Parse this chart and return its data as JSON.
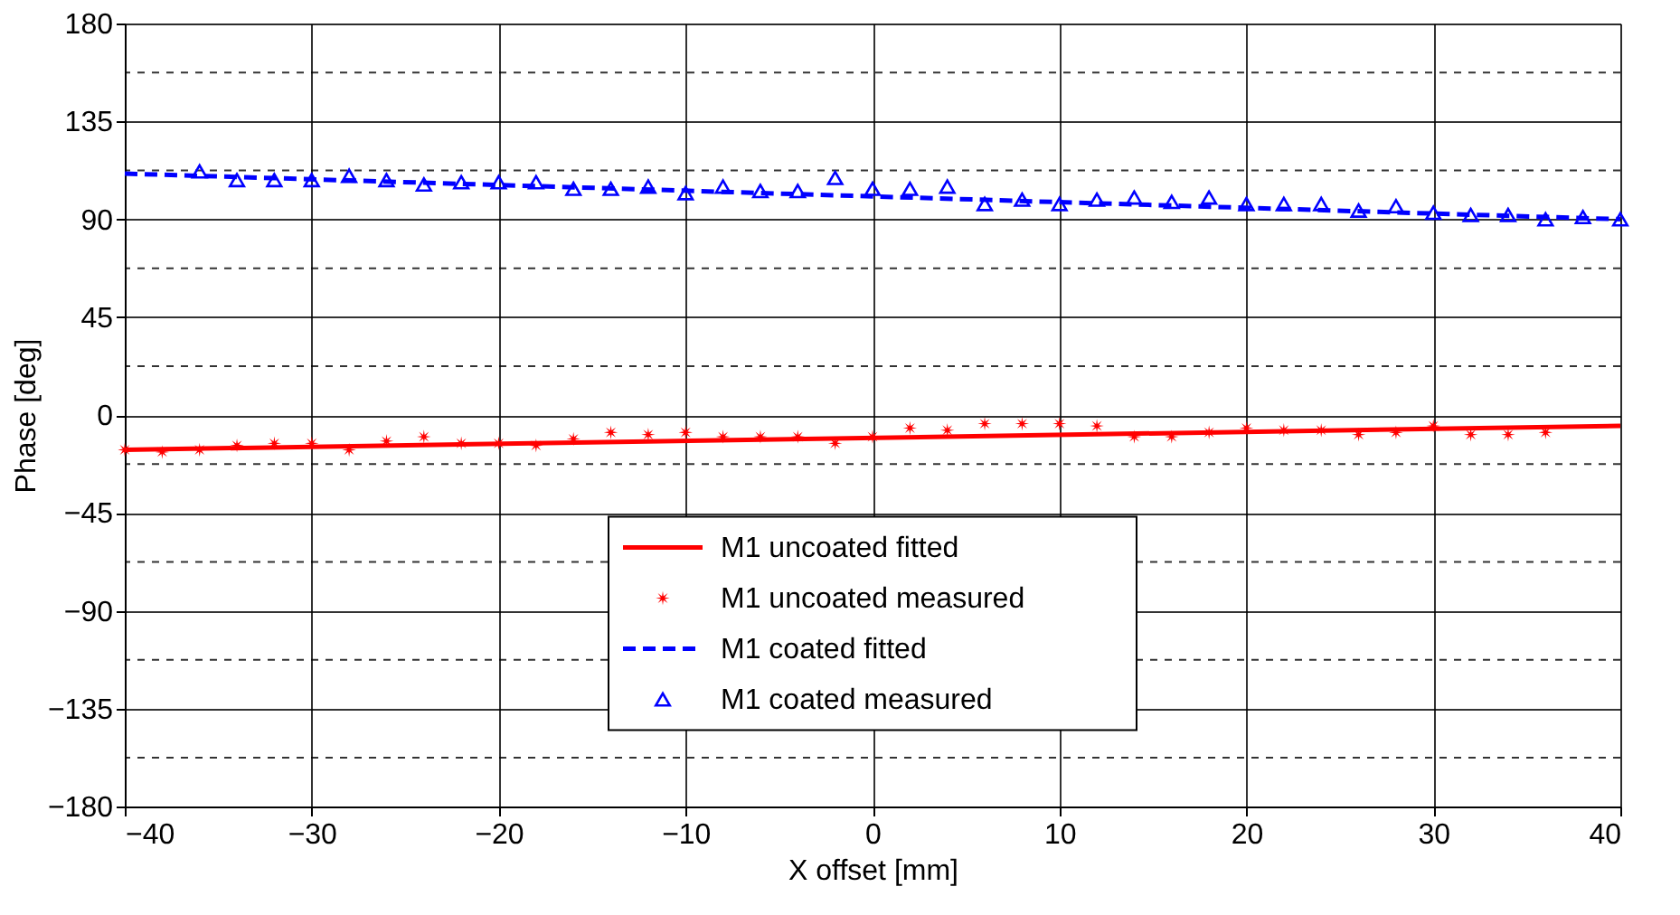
{
  "chart_data": {
    "type": "line",
    "xlabel": "X offset [mm]",
    "ylabel": "Phase [deg]",
    "xlim": [
      -40,
      40
    ],
    "xticks": [
      -40,
      -30,
      -20,
      -10,
      0,
      10,
      20,
      30,
      40
    ],
    "ylim": [
      -180,
      180
    ],
    "yticks": [
      -180,
      {
        "value": -157.5,
        "label": null
      },
      -135,
      {
        "value": -112.5,
        "label": null
      },
      -90,
      {
        "value": -67.5,
        "label": null
      },
      -45,
      {
        "value": -22.5,
        "label": null
      },
      0,
      {
        "value": 22.5,
        "label": null
      },
      45,
      {
        "value": 67.5,
        "label": null
      },
      90,
      {
        "value": 112.5,
        "label": null
      },
      135,
      {
        "value": 157.5,
        "label": null
      },
      180
    ],
    "grid": true,
    "legend": "bottom",
    "series": [
      {
        "name": "M1 uncoated fitted",
        "type": "line",
        "line_style": "solid",
        "marker": "none",
        "color": "#ff0000",
        "x": [
          -40,
          40
        ],
        "values": [
          -16,
          -5
        ]
      },
      {
        "name": "M1 uncoated measured",
        "type": "scatter",
        "marker": "star",
        "color": "#ff0000",
        "x": [
          -40,
          -38,
          -36,
          -34,
          -32,
          -30,
          -28,
          -26,
          -24,
          -22,
          -20,
          -18,
          -16,
          -14,
          -12,
          -10,
          -8,
          -6,
          -4,
          -2,
          0,
          2,
          4,
          6,
          8,
          10,
          12,
          14,
          16,
          18,
          20,
          22,
          24,
          26,
          28,
          30,
          32,
          34,
          36
        ],
        "values": [
          -16,
          -17,
          -16,
          -14,
          -13,
          -13,
          -16,
          -12,
          -10,
          -13,
          -13,
          -14,
          -11,
          -8,
          -9,
          -8,
          -10,
          -10,
          -10,
          -13,
          -10,
          -6,
          -7,
          -4,
          -4,
          -4,
          -5,
          -10,
          -10,
          -8,
          -6,
          -7,
          -7,
          -9,
          -8,
          -5,
          -9,
          -9,
          -8
        ]
      },
      {
        "name": "M1 coated fitted",
        "type": "line",
        "line_style": "dashed",
        "marker": "none",
        "color": "#0000ff",
        "x": [
          -40,
          40
        ],
        "values": [
          111,
          90
        ]
      },
      {
        "name": "M1 coated measured",
        "type": "scatter",
        "marker": "triangle",
        "color": "#0000ff",
        "x": [
          -36,
          -34,
          -32,
          -30,
          -28,
          -26,
          -24,
          -22,
          -20,
          -18,
          -16,
          -14,
          -12,
          -10,
          -8,
          -6,
          -4,
          -2,
          0,
          2,
          4,
          6,
          8,
          10,
          12,
          14,
          16,
          18,
          20,
          22,
          24,
          26,
          28,
          30,
          32,
          34,
          36,
          38,
          40
        ],
        "values": [
          112,
          108,
          108,
          108,
          110,
          108,
          106,
          107,
          107,
          107,
          104,
          104,
          105,
          102,
          105,
          103,
          103,
          109,
          104,
          104,
          105,
          97,
          99,
          97,
          99,
          100,
          98,
          100,
          97,
          97,
          97,
          94,
          96,
          93,
          92,
          92,
          90,
          91,
          90
        ]
      }
    ]
  }
}
